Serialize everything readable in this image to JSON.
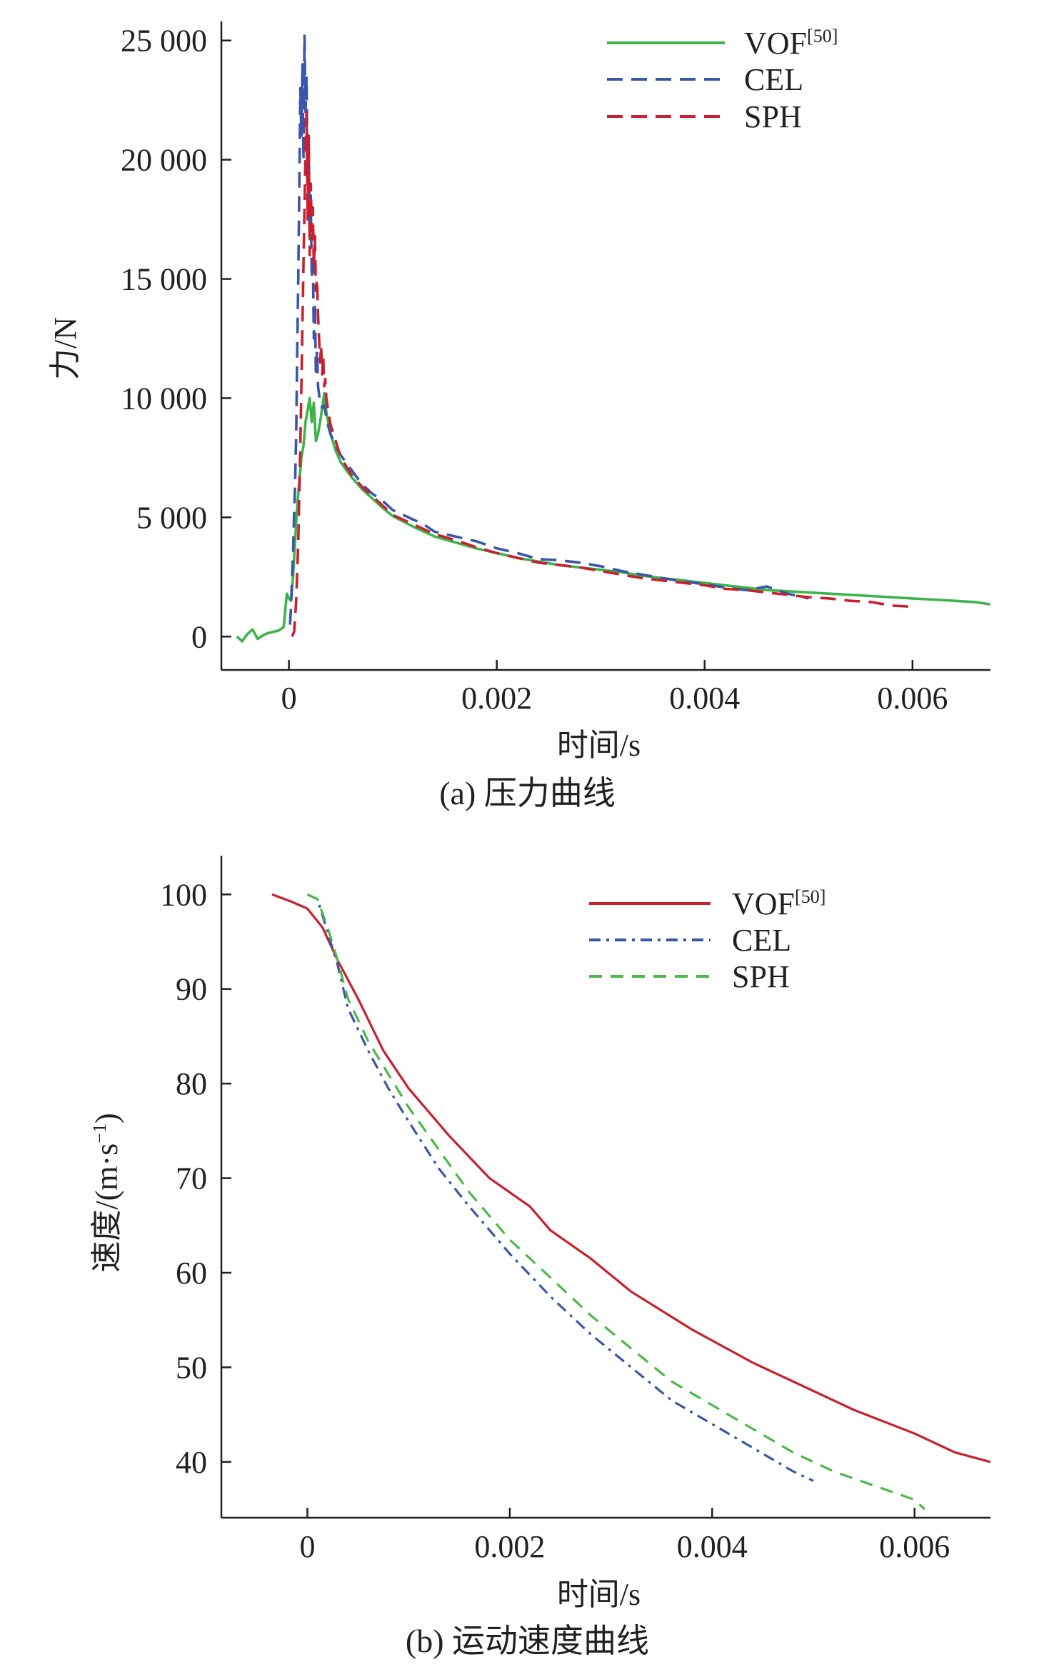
{
  "chart_data": [
    {
      "type": "line",
      "caption": "(a) 压力曲线",
      "xlabel": "时间/s",
      "ylabel": "力/N",
      "xlim": [
        -0.00065,
        0.00675
      ],
      "ylim": [
        -1400,
        25800
      ],
      "xticks": [
        0,
        0.002,
        0.004,
        0.006
      ],
      "xtick_labels": [
        "0",
        "0.002",
        "0.004",
        "0.006"
      ],
      "yticks": [
        0,
        5000,
        10000,
        15000,
        20000,
        25000
      ],
      "ytick_labels": [
        "0",
        "5 000",
        "10 000",
        "15 000",
        "20 000",
        "25 000"
      ],
      "legend_position": "top-right",
      "series": [
        {
          "name": "VOF",
          "name_sup": "[50]",
          "color": "#3cb44b",
          "dash": "solid",
          "x": [
            -0.0005,
            -0.00045,
            -0.0004,
            -0.00035,
            -0.0003,
            -0.00025,
            -0.0002,
            -0.00015,
            -0.0001,
            -5e-05,
            -2e-05,
            0.0,
            2e-05,
            4e-05,
            6e-05,
            8e-05,
            0.0001,
            0.00012,
            0.00014,
            0.00016,
            0.00018,
            0.0002,
            0.00022,
            0.00024,
            0.00026,
            0.00028,
            0.0003,
            0.00032,
            0.00034,
            0.00036,
            0.0004,
            0.00045,
            0.0005,
            0.0006,
            0.0007,
            0.0008,
            0.0009,
            0.001,
            0.0012,
            0.0014,
            0.0016,
            0.0018,
            0.002,
            0.0022,
            0.0024,
            0.0026,
            0.0028,
            0.003,
            0.0032,
            0.0034,
            0.0036,
            0.0038,
            0.004,
            0.0042,
            0.0044,
            0.0046,
            0.0048,
            0.005,
            0.0052,
            0.0054,
            0.0056,
            0.0058,
            0.006,
            0.0062,
            0.0064,
            0.0066,
            0.00675
          ],
          "y": [
            0,
            -200,
            100,
            300,
            -100,
            50,
            150,
            200,
            250,
            400,
            1800,
            1600,
            1500,
            2500,
            4000,
            5500,
            6500,
            7500,
            8000,
            9000,
            9500,
            10000,
            9000,
            9800,
            8200,
            8500,
            9000,
            9600,
            10200,
            9400,
            8500,
            7800,
            7300,
            6700,
            6200,
            5800,
            5400,
            5050,
            4600,
            4200,
            3950,
            3700,
            3500,
            3300,
            3150,
            3000,
            2900,
            2800,
            2700,
            2550,
            2450,
            2350,
            2250,
            2150,
            2050,
            1950,
            1900,
            1850,
            1800,
            1750,
            1700,
            1650,
            1600,
            1550,
            1500,
            1450,
            1350
          ]
        },
        {
          "name": "CEL",
          "color": "#3a56a8",
          "dash": "long-dash",
          "x": [
            1e-05,
            2e-05,
            3e-05,
            4e-05,
            5e-05,
            6e-05,
            7e-05,
            8e-05,
            9e-05,
            0.0001,
            0.00011,
            0.00012,
            0.00013,
            0.00014,
            0.00015,
            0.00016,
            0.00017,
            0.00018,
            0.00019,
            0.0002,
            0.00021,
            0.00022,
            0.00023,
            0.00024,
            0.00025,
            0.00026,
            0.00027,
            0.00028,
            0.0003,
            0.00032,
            0.00034,
            0.00036,
            0.00038,
            0.0004,
            0.00045,
            0.0005,
            0.0006,
            0.0007,
            0.0008,
            0.0009,
            0.001,
            0.0011,
            0.0012,
            0.0013,
            0.0014,
            0.0016,
            0.0018,
            0.002,
            0.0022,
            0.0024,
            0.0026,
            0.0028,
            0.003,
            0.0032,
            0.0034,
            0.0036,
            0.0038,
            0.004,
            0.0042,
            0.0044,
            0.0046,
            0.0048,
            0.005
          ],
          "y": [
            500,
            1200,
            2500,
            3500,
            5200,
            6500,
            8500,
            12000,
            15000,
            19000,
            23000,
            21000,
            24000,
            20000,
            25200,
            22000,
            23500,
            19000,
            21000,
            17000,
            18500,
            15000,
            16000,
            12500,
            14000,
            11000,
            12000,
            10500,
            9800,
            9600,
            9700,
            9200,
            8800,
            8500,
            8000,
            7600,
            7000,
            6400,
            6000,
            5700,
            5300,
            5100,
            4900,
            4700,
            4400,
            4200,
            4000,
            3700,
            3500,
            3250,
            3200,
            3100,
            2950,
            2750,
            2600,
            2450,
            2300,
            2200,
            2050,
            1950,
            2100,
            1800,
            1600
          ]
        },
        {
          "name": "SPH",
          "color": "#c8202f",
          "dash": "long-dash",
          "x": [
            3e-05,
            5e-05,
            7e-05,
            9e-05,
            0.00011,
            0.00013,
            0.00015,
            0.00016,
            0.00017,
            0.00018,
            0.00019,
            0.0002,
            0.00021,
            0.00022,
            0.00023,
            0.00024,
            0.00025,
            0.00026,
            0.00027,
            0.00028,
            0.00029,
            0.0003,
            0.00031,
            0.00032,
            0.00033,
            0.00034,
            0.00035,
            0.00036,
            0.00038,
            0.0004,
            0.00045,
            0.0005,
            0.0006,
            0.0007,
            0.0008,
            0.0009,
            0.001,
            0.0012,
            0.0014,
            0.0016,
            0.0018,
            0.002,
            0.0022,
            0.0024,
            0.0026,
            0.0028,
            0.003,
            0.0032,
            0.0034,
            0.0036,
            0.0038,
            0.004,
            0.0042,
            0.0044,
            0.0046,
            0.0048,
            0.005,
            0.0052,
            0.0054,
            0.0056,
            0.0058,
            0.006
          ],
          "y": [
            0,
            200,
            1500,
            4000,
            8000,
            13000,
            18000,
            20500,
            22000,
            17500,
            21000,
            16000,
            19000,
            17000,
            18000,
            15500,
            16800,
            14500,
            15000,
            13500,
            12500,
            11500,
            12200,
            11000,
            11800,
            10500,
            10800,
            10000,
            9400,
            8900,
            8200,
            7500,
            6800,
            6300,
            5900,
            5500,
            5100,
            4700,
            4300,
            4050,
            3750,
            3500,
            3300,
            3100,
            3000,
            2900,
            2750,
            2600,
            2450,
            2350,
            2250,
            2150,
            2000,
            1950,
            1850,
            1750,
            1650,
            1600,
            1500,
            1450,
            1300,
            1250
          ]
        }
      ]
    },
    {
      "type": "line",
      "caption": "(b) 运动速度曲线",
      "xlabel": "时间/s",
      "ylabel": "速度/(m·s",
      "ylabel_sup": "−1",
      "ylabel_end": ")",
      "xlim": [
        -0.00085,
        0.00675
      ],
      "ylim": [
        34.1,
        104.1
      ],
      "xticks": [
        0,
        0.002,
        0.004,
        0.006
      ],
      "xtick_labels": [
        "0",
        "0.002",
        "0.004",
        "0.006"
      ],
      "yticks": [
        40,
        50,
        60,
        70,
        80,
        90,
        100
      ],
      "ytick_labels": [
        "40",
        "50",
        "60",
        "70",
        "80",
        "90",
        "100"
      ],
      "legend_position": "top-right",
      "series": [
        {
          "name": "VOF",
          "name_sup": "[50]",
          "color": "#c8202f",
          "dash": "solid",
          "x": [
            -0.00035,
            -0.00015,
            0.0,
            0.00015,
            0.0003,
            0.0005,
            0.00075,
            0.001,
            0.0014,
            0.0018,
            0.0022,
            0.0024,
            0.0028,
            0.0032,
            0.0038,
            0.0044,
            0.005,
            0.0054,
            0.006,
            0.0064,
            0.00675
          ],
          "y": [
            100,
            99.2,
            98.5,
            96.5,
            93,
            89,
            83.5,
            79.5,
            74.5,
            70,
            67,
            64.5,
            61.5,
            58,
            54,
            50.5,
            47.5,
            45.5,
            43,
            41,
            40
          ]
        },
        {
          "name": "CEL",
          "color": "#3a56a8",
          "dash": "dash-dot",
          "x": [
            0.0,
            0.0001,
            0.0002,
            0.0003,
            0.0004,
            0.0006,
            0.0008,
            0.001,
            0.0013,
            0.0016,
            0.002,
            0.0024,
            0.0028,
            0.0032,
            0.0036,
            0.004,
            0.0044,
            0.0048,
            0.005
          ],
          "y": [
            100,
            99.5,
            96,
            92.5,
            88,
            83.5,
            79.5,
            76,
            71,
            67,
            62,
            57.5,
            53.5,
            50,
            46.5,
            44,
            41.5,
            39,
            38
          ]
        },
        {
          "name": "SPH",
          "color": "#4db848",
          "dash": "dashed",
          "x": [
            0.0,
            0.0001,
            0.0002,
            0.0003,
            0.0004,
            0.0006,
            0.0008,
            0.001,
            0.0013,
            0.0016,
            0.002,
            0.0024,
            0.0028,
            0.0032,
            0.0036,
            0.004,
            0.0044,
            0.0048,
            0.0052,
            0.0056,
            0.006,
            0.0061
          ],
          "y": [
            100,
            99.5,
            96.5,
            93,
            89,
            84.5,
            81,
            77.5,
            73,
            68.5,
            63.5,
            59.5,
            55.5,
            52,
            48.5,
            46,
            43.5,
            41,
            39,
            37.5,
            36,
            35
          ]
        }
      ]
    }
  ]
}
